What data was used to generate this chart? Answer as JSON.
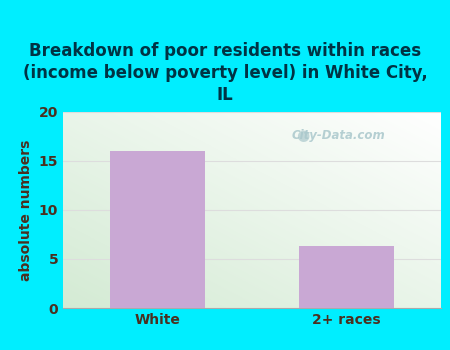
{
  "categories": [
    "White",
    "2+ races"
  ],
  "values": [
    16,
    6.3
  ],
  "bar_color": "#c9a8d4",
  "title": "Breakdown of poor residents within races\n(income below poverty level) in White City,\nIL",
  "ylabel": "absolute numbers",
  "ylim": [
    0,
    20
  ],
  "yticks": [
    0,
    5,
    10,
    15,
    20
  ],
  "outer_bg_color": "#00eeff",
  "title_fontsize": 12,
  "axis_label_fontsize": 10,
  "tick_fontsize": 10,
  "title_color": "#003344",
  "axis_label_color": "#4a3020",
  "watermark_text": "City-Data.com",
  "grid_color": "#dddddd"
}
